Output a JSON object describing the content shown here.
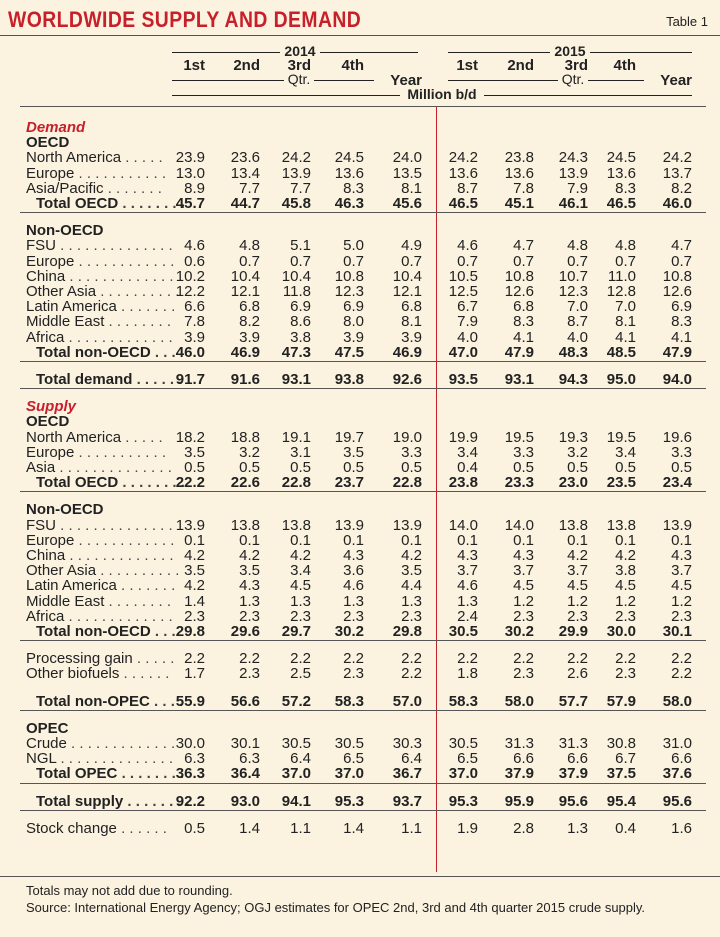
{
  "title": "WORLDWIDE SUPPLY AND DEMAND",
  "table_label": "Table 1",
  "header": {
    "year_a": "2014",
    "year_b": "2015",
    "quarters": [
      "1st",
      "2nd",
      "3rd",
      "4th"
    ],
    "qtr_label": "Qtr.",
    "year_label": "Year",
    "unit": "Million b/d"
  },
  "rows": [
    {
      "type": "section",
      "label": "Demand"
    },
    {
      "type": "group",
      "label": "OECD"
    },
    {
      "type": "data",
      "label": "North America",
      "dots": ". . . . .",
      "values": [
        "23.9",
        "23.6",
        "24.2",
        "24.5",
        "24.0",
        "24.2",
        "23.8",
        "24.3",
        "24.5",
        "24.2"
      ]
    },
    {
      "type": "data",
      "label": "Europe",
      "dots": ". . . . . . . . . . .",
      "values": [
        "13.0",
        "13.4",
        "13.9",
        "13.6",
        "13.5",
        "13.6",
        "13.6",
        "13.9",
        "13.6",
        "13.7"
      ]
    },
    {
      "type": "data",
      "label": "Asia/Pacific",
      "dots": ". . . . . . .",
      "values": [
        "8.9",
        "7.7",
        "7.7",
        "8.3",
        "8.1",
        "8.7",
        "7.8",
        "7.9",
        "8.3",
        "8.2"
      ]
    },
    {
      "type": "total",
      "label": "Total OECD",
      "dots": ". . . . . . . .",
      "values": [
        "45.7",
        "44.7",
        "45.8",
        "46.3",
        "45.6",
        "46.5",
        "45.1",
        "46.1",
        "46.5",
        "46.0"
      ]
    },
    {
      "type": "gap"
    },
    {
      "type": "group",
      "label": "Non-OECD"
    },
    {
      "type": "data",
      "label": "FSU",
      "dots": ". . . . . . . . . . . . . .",
      "values": [
        "4.6",
        "4.8",
        "5.1",
        "5.0",
        "4.9",
        "4.6",
        "4.7",
        "4.8",
        "4.8",
        "4.7"
      ]
    },
    {
      "type": "data",
      "label": "Europe",
      "dots": ". . . . . . . . . . . .",
      "values": [
        "0.6",
        "0.7",
        "0.7",
        "0.7",
        "0.7",
        "0.7",
        "0.7",
        "0.7",
        "0.7",
        "0.7"
      ]
    },
    {
      "type": "data",
      "label": "China",
      "dots": ". . . . . . . . . . . . .",
      "values": [
        "10.2",
        "10.4",
        "10.4",
        "10.8",
        "10.4",
        "10.5",
        "10.8",
        "10.7",
        "11.0",
        "10.8"
      ]
    },
    {
      "type": "data",
      "label": "Other Asia",
      "dots": ". . . . . . . . . .",
      "values": [
        "12.2",
        "12.1",
        "11.8",
        "12.3",
        "12.1",
        "12.5",
        "12.6",
        "12.3",
        "12.8",
        "12.6"
      ]
    },
    {
      "type": "data",
      "label": "Latin America",
      "dots": ". . . . . . .",
      "values": [
        "6.6",
        "6.8",
        "6.9",
        "6.9",
        "6.8",
        "6.7",
        "6.8",
        "7.0",
        "7.0",
        "6.9"
      ]
    },
    {
      "type": "data",
      "label": "Middle East",
      "dots": ". . . . . . . .",
      "values": [
        "7.8",
        "8.2",
        "8.6",
        "8.0",
        "8.1",
        "7.9",
        "8.3",
        "8.7",
        "8.1",
        "8.3"
      ]
    },
    {
      "type": "data",
      "label": "Africa",
      "dots": ". . . . . . . . . . . . .",
      "values": [
        "3.9",
        "3.9",
        "3.8",
        "3.9",
        "3.9",
        "4.0",
        "4.1",
        "4.0",
        "4.1",
        "4.1"
      ]
    },
    {
      "type": "total",
      "label": "Total non-OECD",
      "dots": ". . .",
      "values": [
        "46.0",
        "46.9",
        "47.3",
        "47.5",
        "46.9",
        "47.0",
        "47.9",
        "48.3",
        "48.5",
        "47.9"
      ]
    },
    {
      "type": "gap"
    },
    {
      "type": "total",
      "label": "Total demand",
      "dots": ". . . . . . .",
      "values": [
        "91.7",
        "91.6",
        "93.1",
        "93.8",
        "92.6",
        "93.5",
        "93.1",
        "94.3",
        "95.0",
        "94.0"
      ]
    },
    {
      "type": "gap"
    },
    {
      "type": "section",
      "label": "Supply"
    },
    {
      "type": "group",
      "label": "OECD"
    },
    {
      "type": "data",
      "label": "North America",
      "dots": ". . . . .",
      "values": [
        "18.2",
        "18.8",
        "19.1",
        "19.7",
        "19.0",
        "19.9",
        "19.5",
        "19.3",
        "19.5",
        "19.6"
      ]
    },
    {
      "type": "data",
      "label": "Europe",
      "dots": ". . . . . . . . . . .",
      "values": [
        "3.5",
        "3.2",
        "3.1",
        "3.5",
        "3.3",
        "3.4",
        "3.3",
        "3.2",
        "3.4",
        "3.3"
      ]
    },
    {
      "type": "data",
      "label": "Asia",
      "dots": ". . . . . . . . . . . . . .",
      "values": [
        "0.5",
        "0.5",
        "0.5",
        "0.5",
        "0.5",
        "0.4",
        "0.5",
        "0.5",
        "0.5",
        "0.5"
      ]
    },
    {
      "type": "total",
      "label": "Total OECD",
      "dots": ". . . . . . . .",
      "values": [
        "22.2",
        "22.6",
        "22.8",
        "23.7",
        "22.8",
        "23.8",
        "23.3",
        "23.0",
        "23.5",
        "23.4"
      ]
    },
    {
      "type": "gap"
    },
    {
      "type": "group",
      "label": "Non-OECD"
    },
    {
      "type": "data",
      "label": "FSU",
      "dots": ". . . . . . . . . . . . . .",
      "values": [
        "13.9",
        "13.8",
        "13.8",
        "13.9",
        "13.9",
        "14.0",
        "14.0",
        "13.8",
        "13.8",
        "13.9"
      ]
    },
    {
      "type": "data",
      "label": "Europe",
      "dots": ". . . . . . . . . . . .",
      "values": [
        "0.1",
        "0.1",
        "0.1",
        "0.1",
        "0.1",
        "0.1",
        "0.1",
        "0.1",
        "0.1",
        "0.1"
      ]
    },
    {
      "type": "data",
      "label": "China",
      "dots": ". . . . . . . . . . . . .",
      "values": [
        "4.2",
        "4.2",
        "4.2",
        "4.3",
        "4.2",
        "4.3",
        "4.3",
        "4.2",
        "4.2",
        "4.3"
      ]
    },
    {
      "type": "data",
      "label": "Other Asia",
      "dots": ". . . . . . . . . .",
      "values": [
        "3.5",
        "3.5",
        "3.4",
        "3.6",
        "3.5",
        "3.7",
        "3.7",
        "3.7",
        "3.8",
        "3.7"
      ]
    },
    {
      "type": "data",
      "label": "Latin America",
      "dots": ". . . . . . .",
      "values": [
        "4.2",
        "4.3",
        "4.5",
        "4.6",
        "4.4",
        "4.6",
        "4.5",
        "4.5",
        "4.5",
        "4.5"
      ]
    },
    {
      "type": "data",
      "label": "Middle East",
      "dots": ". . . . . . . .",
      "values": [
        "1.4",
        "1.3",
        "1.3",
        "1.3",
        "1.3",
        "1.3",
        "1.2",
        "1.2",
        "1.2",
        "1.2"
      ]
    },
    {
      "type": "data",
      "label": "Africa",
      "dots": ". . . . . . . . . . . . .",
      "values": [
        "2.3",
        "2.3",
        "2.3",
        "2.3",
        "2.3",
        "2.4",
        "2.3",
        "2.3",
        "2.3",
        "2.3"
      ]
    },
    {
      "type": "total",
      "label": "Total non-OECD",
      "dots": ". . .",
      "values": [
        "29.8",
        "29.6",
        "29.7",
        "30.2",
        "29.8",
        "30.5",
        "30.2",
        "29.9",
        "30.0",
        "30.1"
      ]
    },
    {
      "type": "gap"
    },
    {
      "type": "data",
      "flat": true,
      "label": "Processing gain",
      "dots": ". . . . .",
      "values": [
        "2.2",
        "2.2",
        "2.2",
        "2.2",
        "2.2",
        "2.2",
        "2.2",
        "2.2",
        "2.2",
        "2.2"
      ]
    },
    {
      "type": "data",
      "flat": true,
      "label": "Other biofuels",
      "dots": ". . . . . .",
      "values": [
        "1.7",
        "2.3",
        "2.5",
        "2.3",
        "2.2",
        "1.8",
        "2.3",
        "2.6",
        "2.3",
        "2.2"
      ]
    },
    {
      "type": "gap"
    },
    {
      "type": "total",
      "label": "Total non-OPEC",
      "dots": ". . . .",
      "values": [
        "55.9",
        "56.6",
        "57.2",
        "58.3",
        "57.0",
        "58.3",
        "58.0",
        "57.7",
        "57.9",
        "58.0"
      ]
    },
    {
      "type": "gap"
    },
    {
      "type": "group",
      "label": "OPEC"
    },
    {
      "type": "data",
      "label": "Crude",
      "dots": ". . . . . . . . . . . . .",
      "values": [
        "30.0",
        "30.1",
        "30.5",
        "30.5",
        "30.3",
        "30.5",
        "31.3",
        "31.3",
        "30.8",
        "31.0"
      ]
    },
    {
      "type": "data",
      "label": "NGL",
      "dots": ". . . . . . . . . . . . . .",
      "values": [
        "6.3",
        "6.3",
        "6.4",
        "6.5",
        "6.4",
        "6.5",
        "6.6",
        "6.6",
        "6.7",
        "6.6"
      ]
    },
    {
      "type": "total",
      "label": "Total OPEC",
      "dots": ". . . . . . . .",
      "values": [
        "36.3",
        "36.4",
        "37.0",
        "37.0",
        "36.7",
        "37.0",
        "37.9",
        "37.9",
        "37.5",
        "37.6"
      ]
    },
    {
      "type": "gap"
    },
    {
      "type": "total",
      "label": "Total supply",
      "dots": ". . . . . . . .",
      "values": [
        "92.2",
        "93.0",
        "94.1",
        "95.3",
        "93.7",
        "95.3",
        "95.9",
        "95.6",
        "95.4",
        "95.6"
      ]
    },
    {
      "type": "gap"
    },
    {
      "type": "data",
      "flat": true,
      "label": "Stock change",
      "dots": ". . . . . .",
      "values": [
        "0.5",
        "1.4",
        "1.1",
        "1.4",
        "1.1",
        "1.9",
        "2.8",
        "1.3",
        "0.4",
        "1.6"
      ]
    }
  ],
  "footnotes": [
    "Totals may not add due to rounding.",
    "Source: International Energy Agency; OGJ estimates for OPEC 2nd, 3rd and 4th quarter 2015 crude supply."
  ]
}
